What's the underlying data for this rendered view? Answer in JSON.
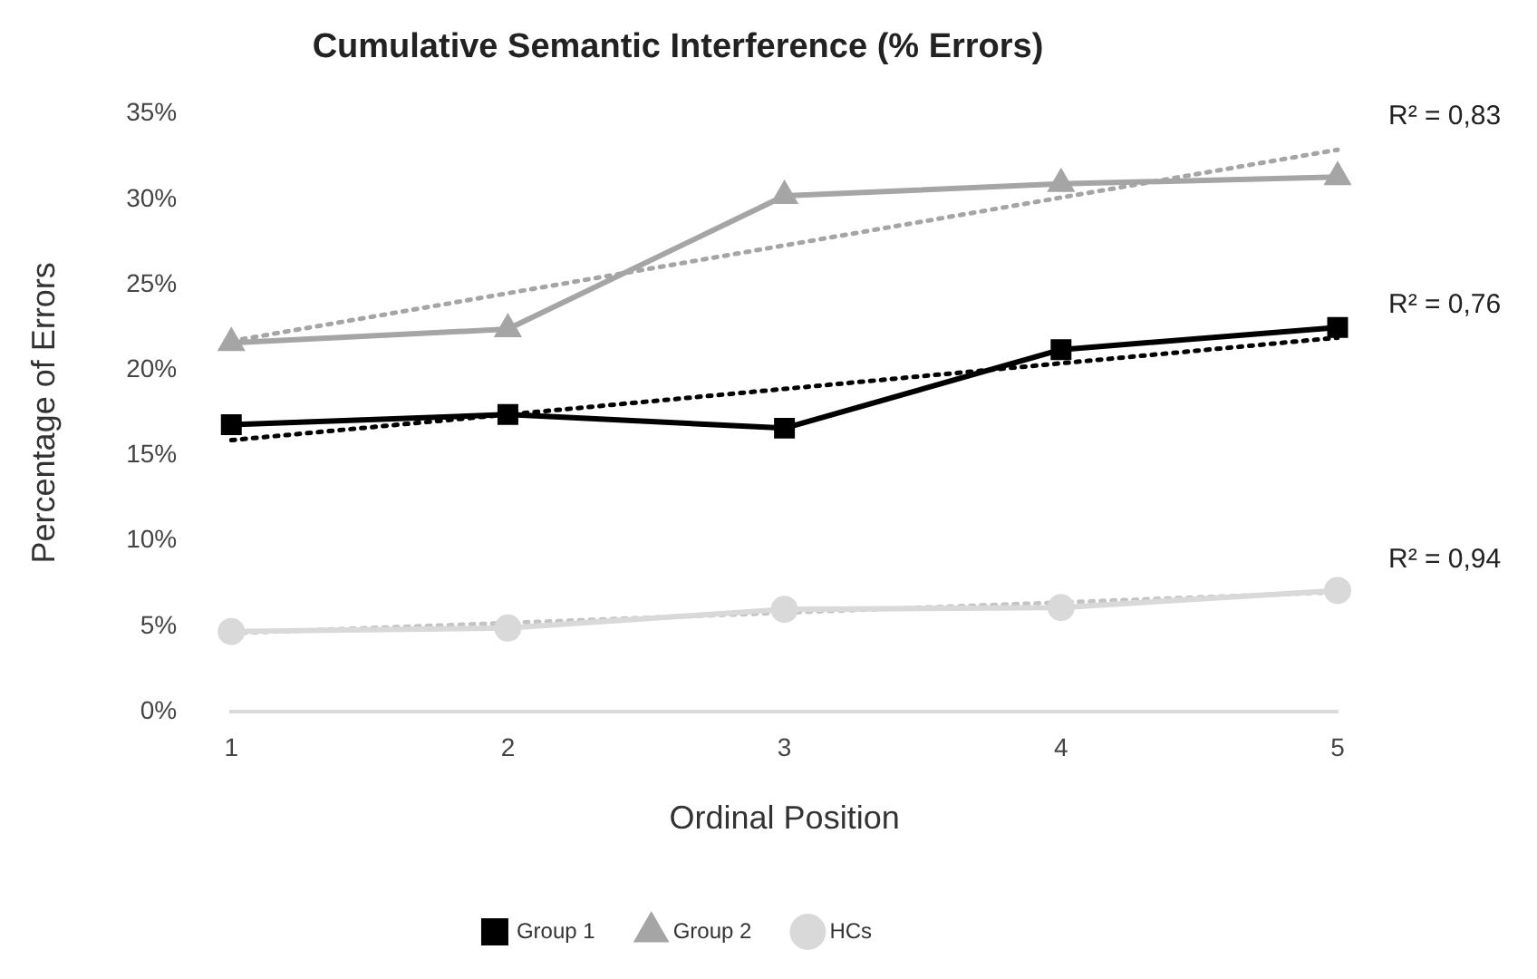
{
  "chart_data": {
    "type": "line",
    "title": "Cumulative Semantic Interference (% Errors)",
    "xlabel": "Ordinal Position",
    "ylabel": "Percentage of Errors",
    "categories": [
      "1",
      "2",
      "3",
      "4",
      "5"
    ],
    "series": [
      {
        "name": "Group 1",
        "color": "#000000",
        "marker": "square",
        "line_style": "solid",
        "values": [
          16.8,
          17.4,
          16.6,
          21.2,
          22.5
        ]
      },
      {
        "name": "Group 2",
        "color": "#a5a5a5",
        "marker": "triangle",
        "line_style": "solid",
        "values": [
          21.6,
          22.4,
          30.2,
          30.9,
          31.3
        ]
      },
      {
        "name": "HCs",
        "color": "#d9d9d9",
        "marker": "circle",
        "line_style": "solid",
        "values": [
          4.7,
          4.9,
          6.0,
          6.1,
          7.1
        ]
      },
      {
        "type": "line",
        "color": "#000000",
        "marker": "none",
        "line_style": "dotted",
        "values": [
          15.9,
          17.4,
          18.9,
          20.4,
          21.9
        ]
      },
      {
        "type": "line",
        "color": "#a5a5a5",
        "marker": "none",
        "line_style": "dotted",
        "values": [
          21.7,
          24.5,
          27.3,
          30.1,
          32.9
        ]
      },
      {
        "type": "line",
        "color": "#c4c4c4",
        "marker": "none",
        "line_style": "dotted",
        "values": [
          4.6,
          5.2,
          5.8,
          6.4,
          7.0
        ]
      }
    ],
    "ylim": [
      0,
      35
    ],
    "yticks": [
      {
        "value": 0,
        "label": "0%"
      },
      {
        "value": 5,
        "label": "5%"
      },
      {
        "value": 10,
        "label": "10%"
      },
      {
        "value": 15,
        "label": "15%"
      },
      {
        "value": 20,
        "label": "20%"
      },
      {
        "value": 25,
        "label": "25%"
      },
      {
        "value": 30,
        "label": "30%"
      },
      {
        "value": 35,
        "label": "35%"
      }
    ],
    "grid": false,
    "legend": "bottom",
    "annotations": [
      {
        "text": "R² = 0,83",
        "x": "5",
        "y": 32.9
      },
      {
        "text": "R² = 0,76",
        "x": "5",
        "y": 21.9
      },
      {
        "text": "R² = 0,94",
        "x": "5",
        "y": 7.0
      }
    ]
  }
}
